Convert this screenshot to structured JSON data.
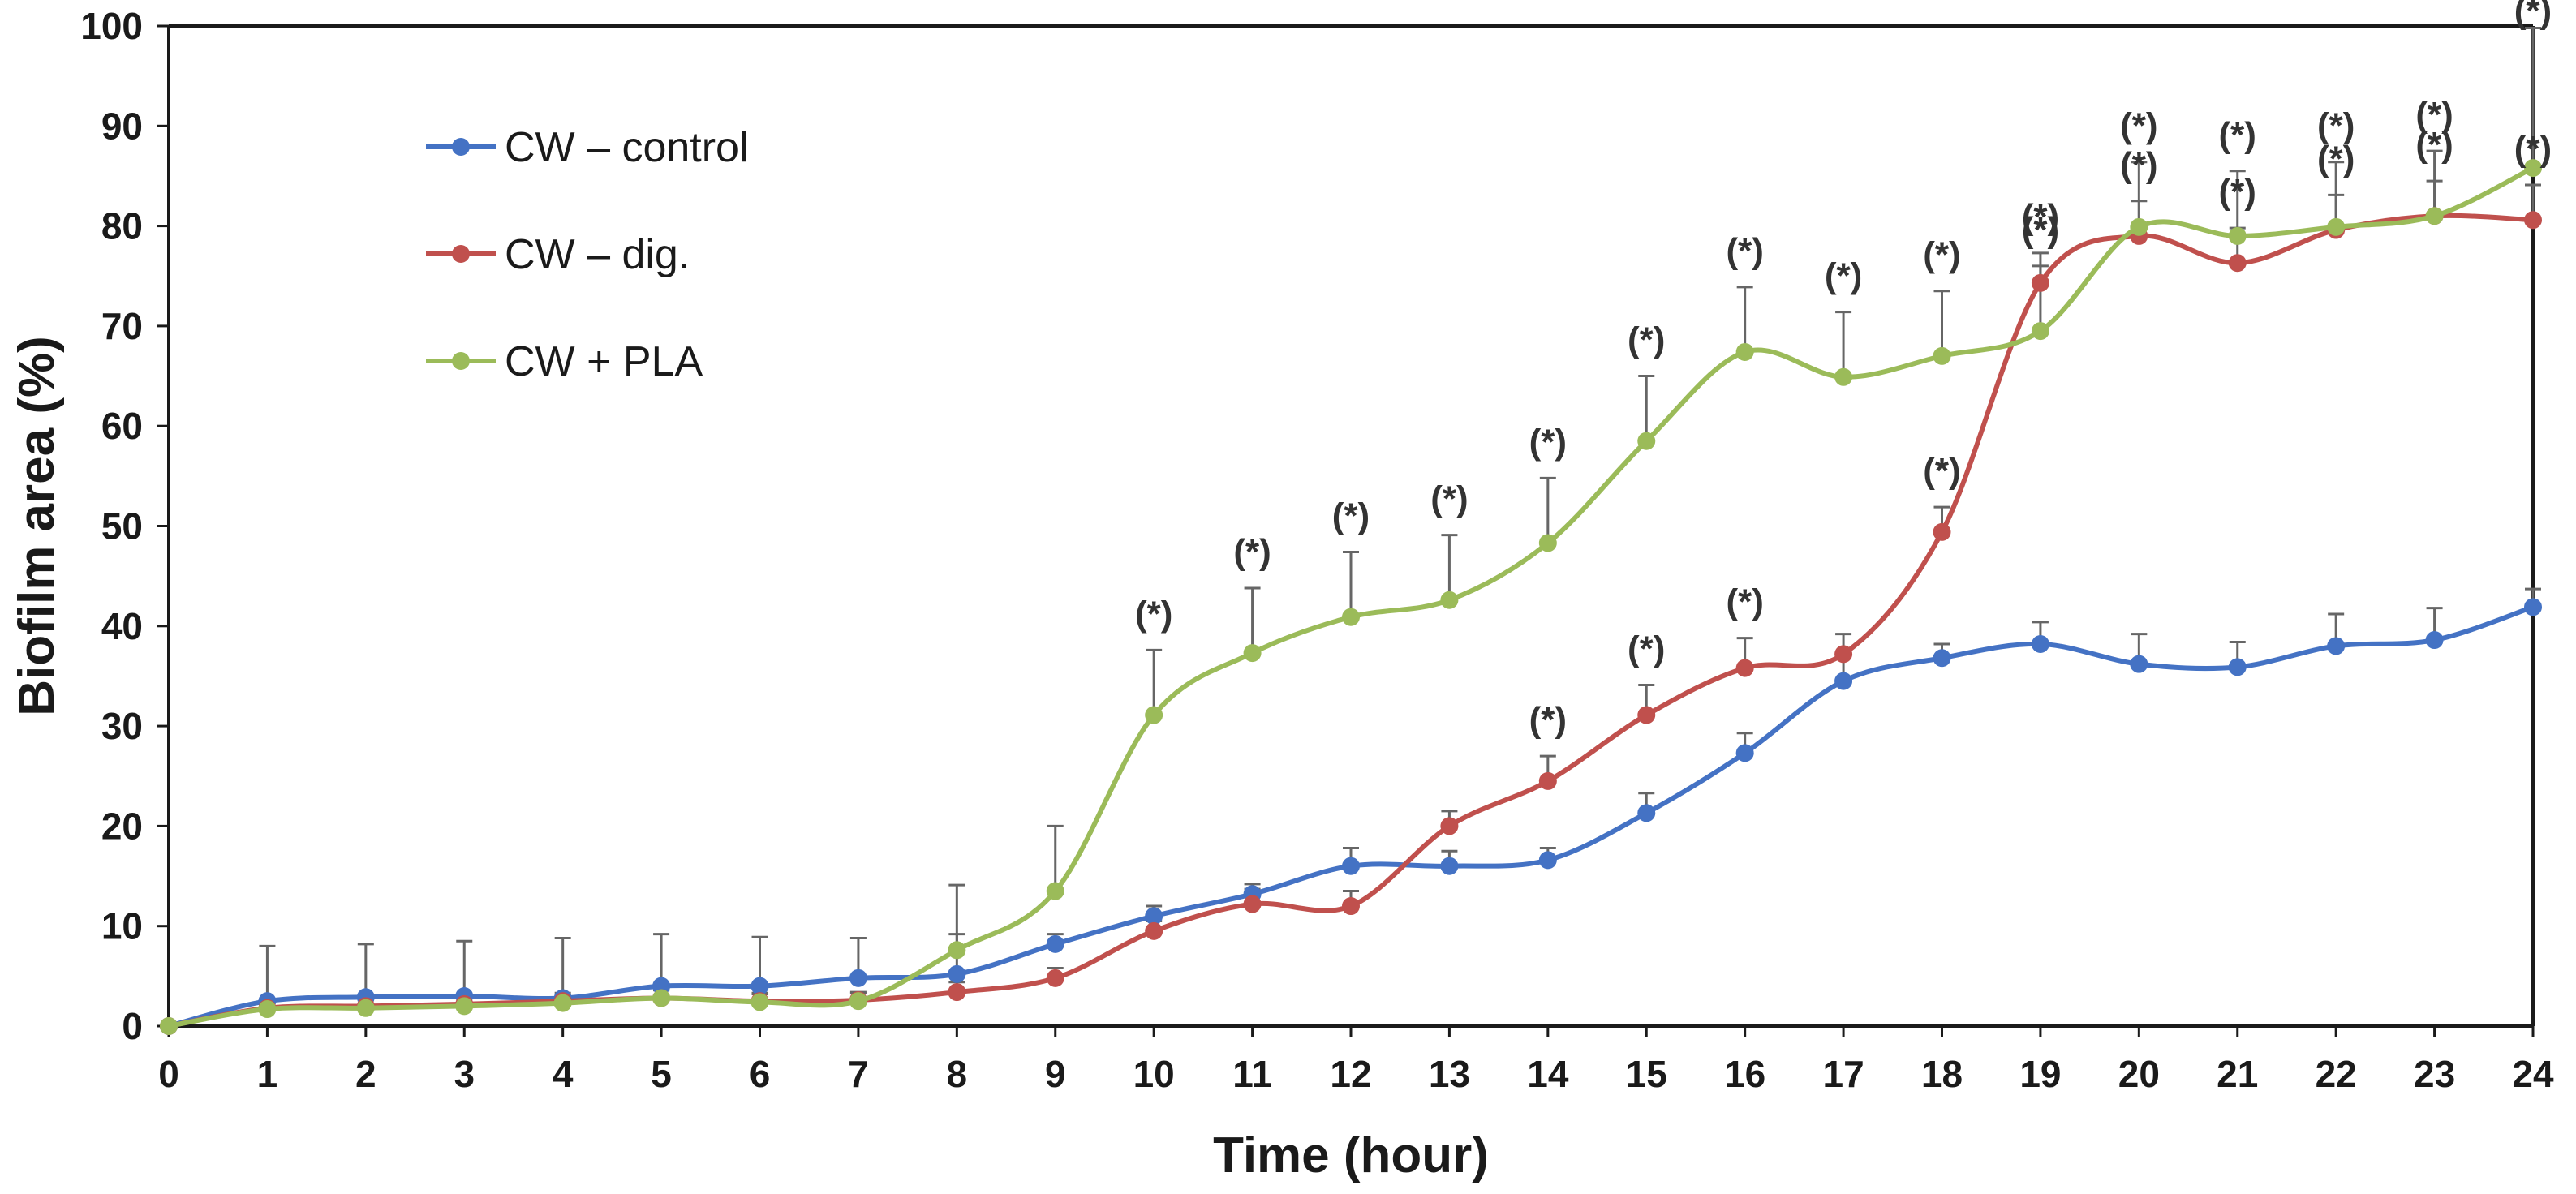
{
  "chart_data": {
    "type": "line",
    "title": "",
    "xlabel": "Time (hour)",
    "ylabel": "Biofilm area (%)",
    "xlim": [
      0,
      24
    ],
    "ylim": [
      0,
      100
    ],
    "x": [
      0,
      1,
      2,
      3,
      4,
      5,
      6,
      7,
      8,
      9,
      10,
      11,
      12,
      13,
      14,
      15,
      16,
      17,
      18,
      19,
      20,
      21,
      22,
      23,
      24
    ],
    "x_ticks": [
      "0",
      "1",
      "2",
      "3",
      "4",
      "5",
      "6",
      "7",
      "8",
      "9",
      "10",
      "11",
      "12",
      "13",
      "14",
      "15",
      "16",
      "17",
      "18",
      "19",
      "20",
      "21",
      "22",
      "23",
      "24"
    ],
    "y_ticks": [
      "0",
      "10",
      "20",
      "30",
      "40",
      "50",
      "60",
      "70",
      "80",
      "90",
      "100"
    ],
    "legend_position": "top-left",
    "significance_marker": "(*)",
    "series": [
      {
        "name": "CW – control",
        "color": "#4472c4",
        "values": [
          0,
          2.5,
          2.9,
          3.0,
          2.8,
          4.0,
          4.0,
          4.8,
          5.2,
          8.2,
          11.0,
          13.2,
          16.0,
          16.0,
          16.6,
          21.3,
          27.3,
          34.5,
          36.8,
          38.2,
          36.2,
          35.9,
          38.0,
          38.6,
          41.9
        ],
        "errors": [
          0,
          5.5,
          5.3,
          5.5,
          6.0,
          5.2,
          4.9,
          4.0,
          4.0,
          1.0,
          1.0,
          1.0,
          1.8,
          1.5,
          1.2,
          2.0,
          2.0,
          2.5,
          1.4,
          2.2,
          3.0,
          2.5,
          3.2,
          3.2,
          1.8
        ],
        "significance": []
      },
      {
        "name": "CW – dig.",
        "color": "#c0504d",
        "values": [
          0,
          1.8,
          2.0,
          2.2,
          2.5,
          2.8,
          2.5,
          2.6,
          3.4,
          4.8,
          9.5,
          12.2,
          12.0,
          20.0,
          24.5,
          31.1,
          35.8,
          37.2,
          49.4,
          74.3,
          79.0,
          76.3,
          79.6,
          81.0,
          80.6
        ],
        "errors": [
          0,
          0.8,
          0.8,
          0.8,
          0.8,
          0.8,
          0.8,
          0.8,
          1.0,
          1.0,
          1.0,
          1.5,
          1.5,
          1.5,
          2.5,
          3.0,
          3.0,
          2.0,
          2.5,
          3.0,
          3.5,
          3.5,
          3.5,
          3.5,
          3.5
        ],
        "significance": [
          14,
          15,
          16,
          18,
          19,
          20,
          21,
          22,
          23,
          24
        ]
      },
      {
        "name": "CW + PLA",
        "color": "#9bbb59",
        "values": [
          0,
          1.7,
          1.8,
          2.0,
          2.3,
          2.8,
          2.4,
          2.5,
          7.6,
          13.5,
          31.1,
          37.3,
          40.9,
          42.6,
          48.3,
          58.5,
          67.4,
          64.9,
          67.0,
          69.5,
          79.9,
          79.0,
          79.9,
          81.0,
          85.8
        ],
        "errors": [
          0,
          0.8,
          0.8,
          0.8,
          0.8,
          0.8,
          0.8,
          0.8,
          6.5,
          6.5,
          6.5,
          6.5,
          6.5,
          6.5,
          6.5,
          6.5,
          6.5,
          6.5,
          6.5,
          6.5,
          6.5,
          6.5,
          6.5,
          6.5,
          14
        ],
        "significance": [
          10,
          11,
          12,
          13,
          14,
          15,
          16,
          17,
          18,
          19,
          20,
          21,
          22,
          23,
          24
        ]
      }
    ]
  }
}
